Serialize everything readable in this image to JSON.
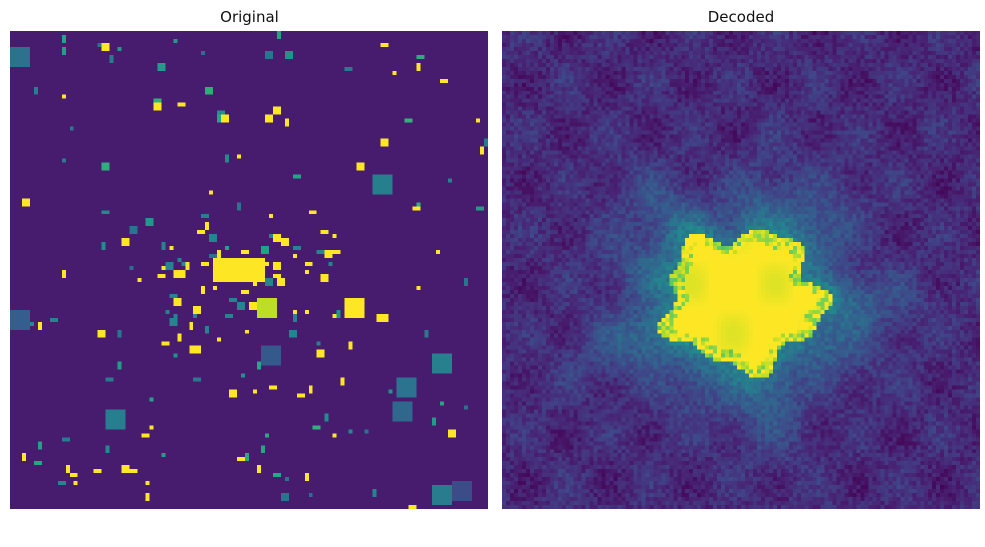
{
  "figure": {
    "panels": [
      {
        "title": "Original"
      },
      {
        "title": "Decoded"
      }
    ]
  },
  "colors": {
    "background": "#ffffff",
    "viridis_dark": "#440154",
    "viridis_base": "#472f7d",
    "viridis_teal": "#21918c",
    "viridis_green": "#35b779",
    "viridis_yellow": "#fde725"
  },
  "colormap": "viridis"
}
